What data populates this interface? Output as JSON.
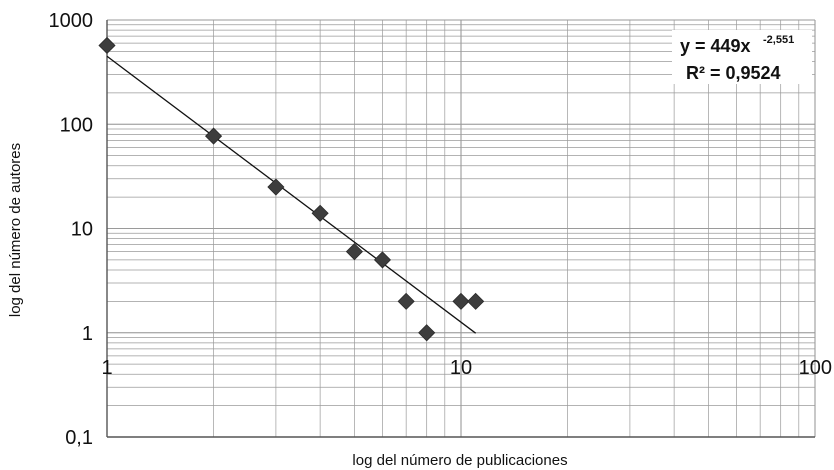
{
  "chart_data": {
    "type": "scatter",
    "title": "",
    "xlabel": "log del número de publicaciones",
    "ylabel": "log del número de autores",
    "x_scale": "log",
    "y_scale": "log",
    "xlim": [
      1,
      100
    ],
    "ylim": [
      0.1,
      1000
    ],
    "x_ticks": [
      1,
      10,
      100
    ],
    "x_tick_labels": [
      "1",
      "10",
      "100"
    ],
    "y_ticks": [
      1000,
      100,
      10,
      1,
      0.1
    ],
    "y_tick_labels": [
      "1000",
      "100",
      "10",
      "1",
      "0,1"
    ],
    "grid": true,
    "points": [
      {
        "x": 1,
        "y": 570
      },
      {
        "x": 2,
        "y": 77
      },
      {
        "x": 3,
        "y": 25
      },
      {
        "x": 4,
        "y": 14
      },
      {
        "x": 5,
        "y": 6
      },
      {
        "x": 6,
        "y": 5
      },
      {
        "x": 7,
        "y": 2
      },
      {
        "x": 8,
        "y": 1
      },
      {
        "x": 10,
        "y": 2
      },
      {
        "x": 11,
        "y": 2
      }
    ],
    "trendline": {
      "type": "power",
      "coefficient": 449,
      "exponent": -2.551,
      "x_range": [
        1,
        11
      ],
      "equation_main": "y = 449x",
      "equation_exponent": "-2,551",
      "r_squared_label": "R² = 0,9524"
    },
    "colors": {
      "marker": "#3d3d3d",
      "line": "#111111",
      "grid": "#9a9a9a"
    }
  }
}
